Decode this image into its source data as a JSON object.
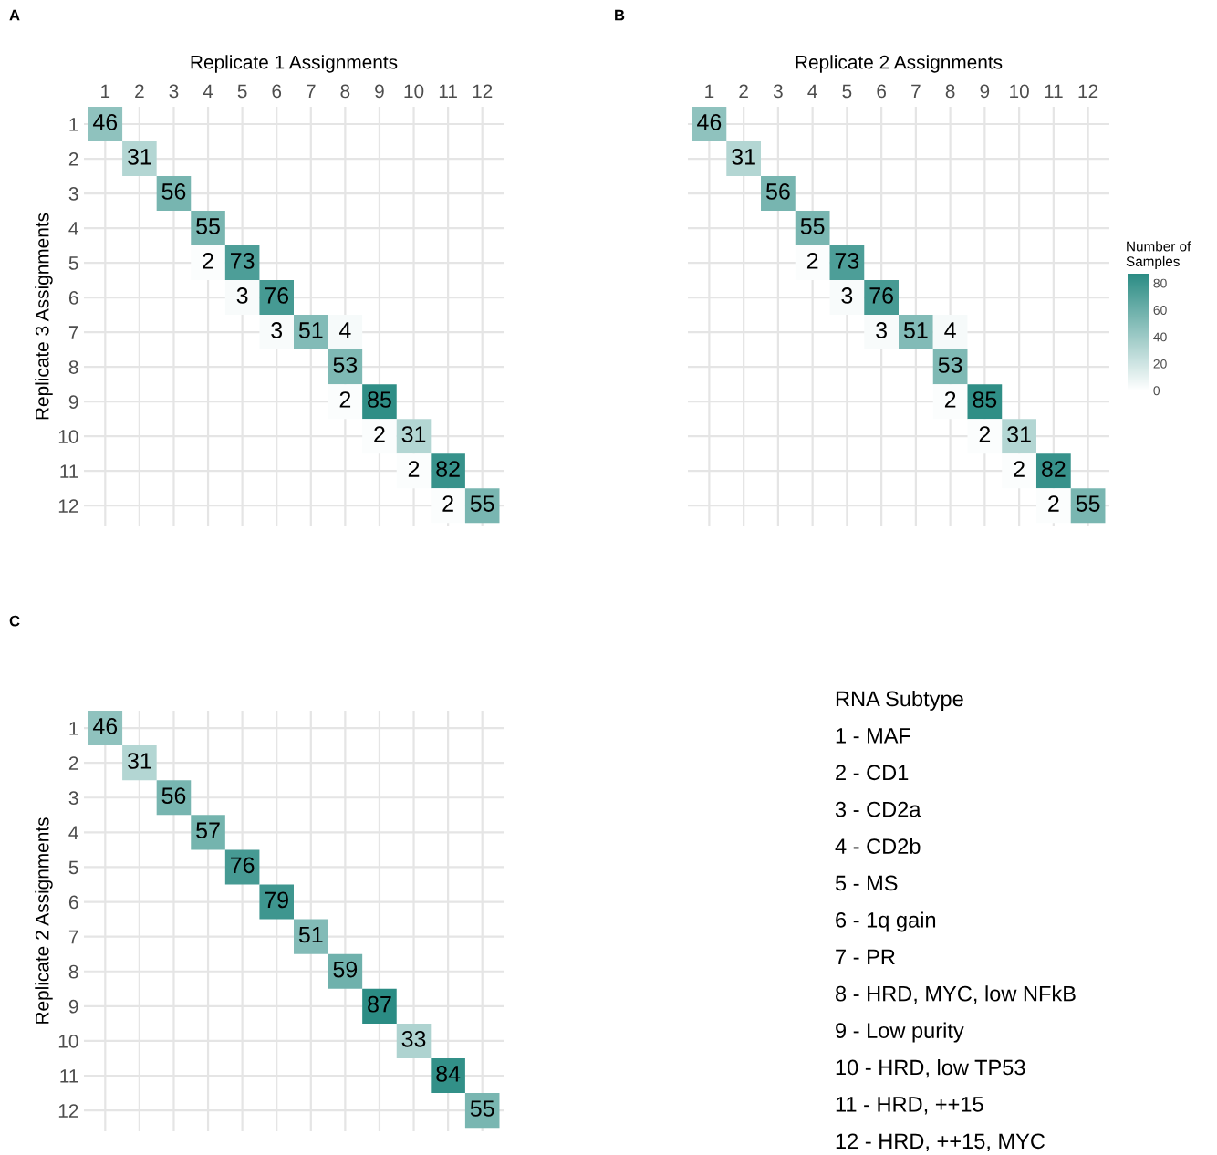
{
  "chart_data": [
    {
      "type": "heatmap",
      "title": "Replicate 1 Assignments",
      "ylabel": "Replicate 3 Assignments",
      "annotations": [
        "A"
      ],
      "categories": [
        "1",
        "2",
        "3",
        "4",
        "5",
        "6",
        "7",
        "8",
        "9",
        "10",
        "11",
        "12"
      ],
      "y_categories": [
        "1",
        "2",
        "3",
        "4",
        "5",
        "6",
        "7",
        "8",
        "9",
        "10",
        "11",
        "12"
      ],
      "cells": [
        [
          46,
          null,
          null,
          null,
          null,
          null,
          null,
          null,
          null,
          null,
          null,
          null
        ],
        [
          null,
          31,
          null,
          null,
          null,
          null,
          null,
          null,
          null,
          null,
          null,
          null
        ],
        [
          null,
          null,
          56,
          null,
          null,
          null,
          null,
          null,
          null,
          null,
          null,
          null
        ],
        [
          null,
          null,
          null,
          55,
          null,
          null,
          null,
          null,
          null,
          null,
          null,
          null
        ],
        [
          null,
          null,
          null,
          2,
          73,
          null,
          null,
          null,
          null,
          null,
          null,
          null
        ],
        [
          null,
          null,
          null,
          null,
          3,
          76,
          null,
          null,
          null,
          null,
          null,
          null
        ],
        [
          null,
          null,
          null,
          null,
          null,
          3,
          51,
          4,
          null,
          null,
          null,
          null
        ],
        [
          null,
          null,
          null,
          null,
          null,
          null,
          null,
          53,
          null,
          null,
          null,
          null
        ],
        [
          null,
          null,
          null,
          null,
          null,
          null,
          null,
          2,
          85,
          null,
          null,
          null
        ],
        [
          null,
          null,
          null,
          null,
          null,
          null,
          null,
          null,
          2,
          31,
          null,
          null
        ],
        [
          null,
          null,
          null,
          null,
          null,
          null,
          null,
          null,
          null,
          2,
          82,
          null
        ],
        [
          null,
          null,
          null,
          null,
          null,
          null,
          null,
          null,
          null,
          null,
          2,
          55
        ]
      ],
      "data_labels": true,
      "grid": true
    },
    {
      "type": "heatmap",
      "title": "Replicate 2 Assignments",
      "annotations": [
        "B"
      ],
      "clabel": "Number of\nSamples",
      "clim": [
        0,
        87
      ],
      "cticks": [
        0,
        20,
        40,
        60,
        80
      ],
      "tick_labels": "x",
      "categories": [
        "1",
        "2",
        "3",
        "4",
        "5",
        "6",
        "7",
        "8",
        "9",
        "10",
        "11",
        "12"
      ],
      "y_categories": [
        "1",
        "2",
        "3",
        "4",
        "5",
        "6",
        "7",
        "8",
        "9",
        "10",
        "11",
        "12"
      ],
      "cells": [
        [
          46,
          null,
          null,
          null,
          null,
          null,
          null,
          null,
          null,
          null,
          null,
          null
        ],
        [
          null,
          31,
          null,
          null,
          null,
          null,
          null,
          null,
          null,
          null,
          null,
          null
        ],
        [
          null,
          null,
          56,
          null,
          null,
          null,
          null,
          null,
          null,
          null,
          null,
          null
        ],
        [
          null,
          null,
          null,
          55,
          null,
          null,
          null,
          null,
          null,
          null,
          null,
          null
        ],
        [
          null,
          null,
          null,
          2,
          73,
          null,
          null,
          null,
          null,
          null,
          null,
          null
        ],
        [
          null,
          null,
          null,
          null,
          3,
          76,
          null,
          null,
          null,
          null,
          null,
          null
        ],
        [
          null,
          null,
          null,
          null,
          null,
          3,
          51,
          4,
          null,
          null,
          null,
          null
        ],
        [
          null,
          null,
          null,
          null,
          null,
          null,
          null,
          53,
          null,
          null,
          null,
          null
        ],
        [
          null,
          null,
          null,
          null,
          null,
          null,
          null,
          2,
          85,
          null,
          null,
          null
        ],
        [
          null,
          null,
          null,
          null,
          null,
          null,
          null,
          null,
          2,
          31,
          null,
          null
        ],
        [
          null,
          null,
          null,
          null,
          null,
          null,
          null,
          null,
          null,
          2,
          82,
          null
        ],
        [
          null,
          null,
          null,
          null,
          null,
          null,
          null,
          null,
          null,
          null,
          2,
          55
        ]
      ],
      "data_labels": true,
      "grid": true
    },
    {
      "type": "heatmap",
      "ylabel": "Replicate 2 Assignments",
      "annotations": [
        "C"
      ],
      "tick_labels": "y",
      "categories": [
        "1",
        "2",
        "3",
        "4",
        "5",
        "6",
        "7",
        "8",
        "9",
        "10",
        "11",
        "12"
      ],
      "y_categories": [
        "1",
        "2",
        "3",
        "4",
        "5",
        "6",
        "7",
        "8",
        "9",
        "10",
        "11",
        "12"
      ],
      "cells": [
        [
          46,
          null,
          null,
          null,
          null,
          null,
          null,
          null,
          null,
          null,
          null,
          null
        ],
        [
          null,
          31,
          null,
          null,
          null,
          null,
          null,
          null,
          null,
          null,
          null,
          null
        ],
        [
          null,
          null,
          56,
          null,
          null,
          null,
          null,
          null,
          null,
          null,
          null,
          null
        ],
        [
          null,
          null,
          null,
          57,
          null,
          null,
          null,
          null,
          null,
          null,
          null,
          null
        ],
        [
          null,
          null,
          null,
          null,
          76,
          null,
          null,
          null,
          null,
          null,
          null,
          null
        ],
        [
          null,
          null,
          null,
          null,
          null,
          79,
          null,
          null,
          null,
          null,
          null,
          null
        ],
        [
          null,
          null,
          null,
          null,
          null,
          null,
          51,
          null,
          null,
          null,
          null,
          null
        ],
        [
          null,
          null,
          null,
          null,
          null,
          null,
          null,
          59,
          null,
          null,
          null,
          null
        ],
        [
          null,
          null,
          null,
          null,
          null,
          null,
          null,
          null,
          87,
          null,
          null,
          null
        ],
        [
          null,
          null,
          null,
          null,
          null,
          null,
          null,
          null,
          null,
          33,
          null,
          null
        ],
        [
          null,
          null,
          null,
          null,
          null,
          null,
          null,
          null,
          null,
          null,
          84,
          null
        ],
        [
          null,
          null,
          null,
          null,
          null,
          null,
          null,
          null,
          null,
          null,
          null,
          55
        ]
      ],
      "data_labels": true,
      "grid": true
    },
    {
      "type": "other",
      "title": "RNA Subtype",
      "annotations": [
        "1 - MAF",
        "2 - CD1",
        "3 - CD2a",
        "4 - CD2b",
        "5 - MS",
        "6 - 1q gain",
        "7 - PR",
        "8 - HRD, MYC, low NFkB",
        "9 - Low purity",
        "10 - HRD, low TP53",
        "11 - HRD, ++15",
        "12 - HRD, ++15, MYC"
      ]
    }
  ]
}
